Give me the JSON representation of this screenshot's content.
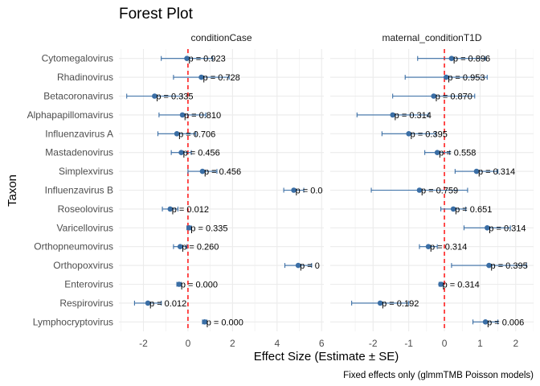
{
  "chart_data": {
    "type": "forest",
    "title": "Forest Plot",
    "xlabel": "Effect Size (Estimate ± SE)",
    "ylabel": "Taxon",
    "caption": "Fixed effects only (glmmTMB Poisson models)",
    "taxa": [
      "Cytomegalovirus",
      "Rhadinovirus",
      "Betacoronavirus",
      "Alphapapillomavirus",
      "Influenzavirus A",
      "Mastadenovirus",
      "Simplexvirus",
      "Influenzavirus B",
      "Roseolovirus",
      "Varicellovirus",
      "Orthopneumovirus",
      "Orthopoxvirus",
      "Enterovirus",
      "Respirovirus",
      "Lymphocryptovirus"
    ],
    "colors": {
      "point": "#3A6EA5",
      "refline": "#FF0000",
      "panel_grid": "#EBEBEB"
    },
    "panels": [
      {
        "name": "conditionCase",
        "xlim": [
          -3.1,
          6.1
        ],
        "xticks": [
          -2,
          0,
          2,
          4,
          6
        ],
        "rows": [
          {
            "taxon": "Cytomegalovirus",
            "estimate": -0.05,
            "lower": -1.2,
            "upper": 1.1,
            "p": "p = 0.923"
          },
          {
            "taxon": "Rhadinovirus",
            "estimate": 0.6,
            "lower": -0.65,
            "upper": 1.85,
            "p": "p = 0.728"
          },
          {
            "taxon": "Betacoronavirus",
            "estimate": -1.5,
            "lower": -2.75,
            "upper": -0.25,
            "p": "p = 0.335"
          },
          {
            "taxon": "Alphapapillomavirus",
            "estimate": -0.25,
            "lower": -1.3,
            "upper": 0.8,
            "p": "p = 0.810"
          },
          {
            "taxon": "Influenzavirus A",
            "estimate": -0.5,
            "lower": -1.35,
            "upper": 0.35,
            "p": "p = 0.706"
          },
          {
            "taxon": "Mastadenovirus",
            "estimate": -0.3,
            "lower": -0.75,
            "upper": 0.15,
            "p": "p = 0.456"
          },
          {
            "taxon": "Simplexvirus",
            "estimate": 0.65,
            "lower": 0.0,
            "upper": 1.3,
            "p": "p = 0.456"
          },
          {
            "taxon": "Influenzavirus B",
            "estimate": 4.75,
            "lower": 4.3,
            "upper": 5.2,
            "p": "p = 0.0"
          },
          {
            "taxon": "Roseolovirus",
            "estimate": -0.8,
            "lower": -1.15,
            "upper": -0.45,
            "p": "p = 0.012"
          },
          {
            "taxon": "Varicellovirus",
            "estimate": 0.05,
            "lower": -0.05,
            "upper": 0.15,
            "p": "p = 0.335"
          },
          {
            "taxon": "Orthopneumovirus",
            "estimate": -0.35,
            "lower": -0.65,
            "upper": -0.05,
            "p": "p = 0.260"
          },
          {
            "taxon": "Orthopoxvirus",
            "estimate": 4.95,
            "lower": 4.35,
            "upper": 5.55,
            "p": "p = 0"
          },
          {
            "taxon": "Enterovirus",
            "estimate": -0.4,
            "lower": -0.5,
            "upper": -0.3,
            "p": "p = 0.000"
          },
          {
            "taxon": "Respirovirus",
            "estimate": -1.8,
            "lower": -2.4,
            "upper": -1.2,
            "p": "p = 0.012"
          },
          {
            "taxon": "Lymphocryptovirus",
            "estimate": 0.75,
            "lower": 0.65,
            "upper": 0.85,
            "p": "p = 0.000"
          }
        ]
      },
      {
        "name": "maternal_conditionT1D",
        "xlim": [
          -3.2,
          2.5
        ],
        "xticks": [
          -2,
          -1,
          0,
          1,
          2
        ],
        "rows": [
          {
            "taxon": "Cytomegalovirus",
            "estimate": 0.2,
            "lower": -0.75,
            "upper": 1.15,
            "p": "p = 0.896"
          },
          {
            "taxon": "Rhadinovirus",
            "estimate": 0.05,
            "lower": -1.1,
            "upper": 1.2,
            "p": "p = 0.953"
          },
          {
            "taxon": "Betacoronavirus",
            "estimate": -0.3,
            "lower": -1.45,
            "upper": 0.85,
            "p": "p = 0.870"
          },
          {
            "taxon": "Alphapapillomavirus",
            "estimate": -1.45,
            "lower": -2.45,
            "upper": -0.45,
            "p": "p = 0.314"
          },
          {
            "taxon": "Influenzavirus A",
            "estimate": -1.0,
            "lower": -1.75,
            "upper": -0.25,
            "p": "p = 0.395"
          },
          {
            "taxon": "Mastadenovirus",
            "estimate": -0.2,
            "lower": -0.55,
            "upper": 0.15,
            "p": "p = 0.558"
          },
          {
            "taxon": "Simplexvirus",
            "estimate": 0.9,
            "lower": 0.3,
            "upper": 1.5,
            "p": "p = 0.314"
          },
          {
            "taxon": "Influenzavirus B",
            "estimate": -0.7,
            "lower": -2.05,
            "upper": 0.65,
            "p": "p = 0.759"
          },
          {
            "taxon": "Roseolovirus",
            "estimate": 0.25,
            "lower": -0.1,
            "upper": 0.6,
            "p": "p = 0.651"
          },
          {
            "taxon": "Varicellovirus",
            "estimate": 1.2,
            "lower": 0.55,
            "upper": 1.85,
            "p": "p = 0.314"
          },
          {
            "taxon": "Orthopneumovirus",
            "estimate": -0.45,
            "lower": -0.7,
            "upper": -0.2,
            "p": "p = 0.314"
          },
          {
            "taxon": "Orthopoxvirus",
            "estimate": 1.25,
            "lower": 0.2,
            "upper": 2.3,
            "p": "p = 0.395"
          },
          {
            "taxon": "Enterovirus",
            "estimate": -0.1,
            "lower": -0.15,
            "upper": -0.05,
            "p": "p = 0.314"
          },
          {
            "taxon": "Respirovirus",
            "estimate": -1.8,
            "lower": -2.6,
            "upper": -1.0,
            "p": "p = 0.192"
          },
          {
            "taxon": "Lymphocryptovirus",
            "estimate": 1.15,
            "lower": 0.8,
            "upper": 1.5,
            "p": "p = 0.006"
          }
        ]
      }
    ]
  }
}
